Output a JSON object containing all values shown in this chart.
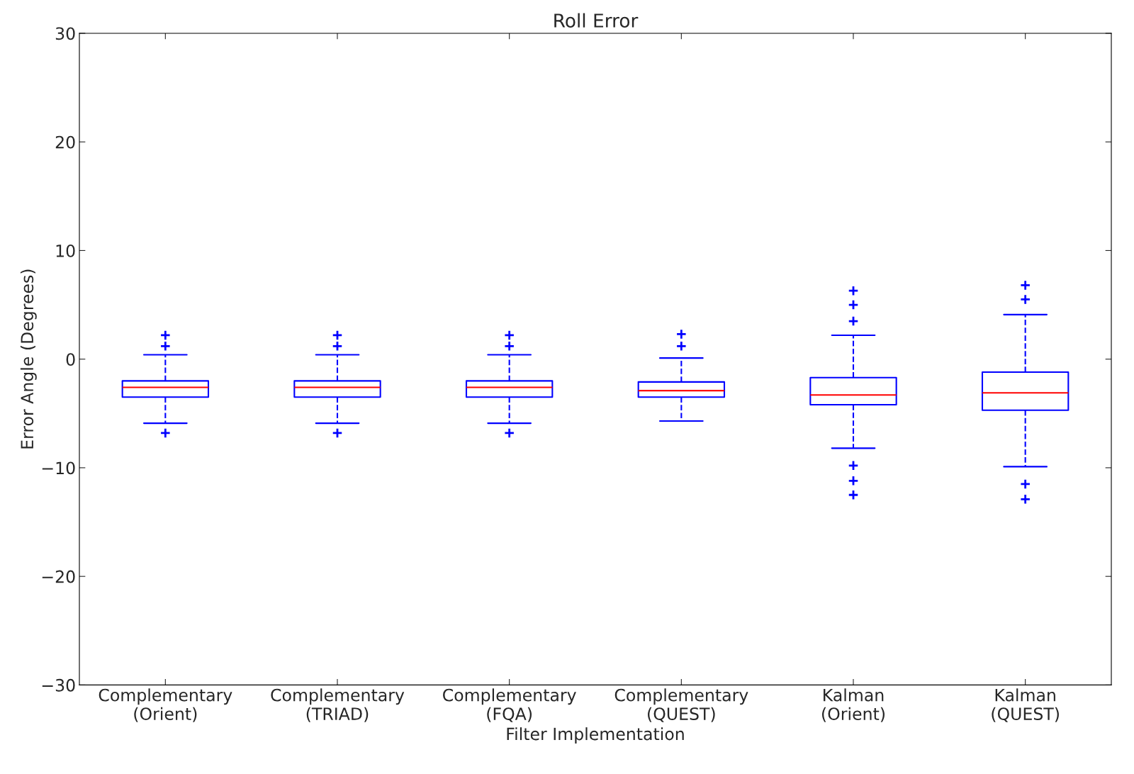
{
  "chart_data": {
    "type": "box",
    "title": "Roll Error",
    "xlabel": "Filter Implementation",
    "ylabel": "Error Angle (Degrees)",
    "categories": [
      "Complementary\n(Orient)",
      "Complementary\n(TRIAD)",
      "Complementary\n(FQA)",
      "Complementary\n(QUEST)",
      "Kalman\n(Orient)",
      "Kalman\n(QUEST)"
    ],
    "ylim": [
      -30,
      30
    ],
    "yticks": [
      -30,
      -20,
      -10,
      0,
      10,
      20,
      30
    ],
    "grid": false,
    "marker": "cross",
    "boxes": [
      {
        "low": -5.9,
        "q1": -3.5,
        "median": -2.6,
        "q3": -2.0,
        "high": 0.4,
        "outliers": [
          1.2,
          2.2,
          -6.8
        ]
      },
      {
        "low": -5.9,
        "q1": -3.5,
        "median": -2.6,
        "q3": -2.0,
        "high": 0.4,
        "outliers": [
          1.2,
          2.2,
          -6.8
        ]
      },
      {
        "low": -5.9,
        "q1": -3.5,
        "median": -2.6,
        "q3": -2.0,
        "high": 0.4,
        "outliers": [
          1.2,
          2.2,
          -6.8
        ]
      },
      {
        "low": -5.7,
        "q1": -3.5,
        "median": -2.9,
        "q3": -2.1,
        "high": 0.1,
        "outliers": [
          1.2,
          2.3
        ]
      },
      {
        "low": -8.2,
        "q1": -4.2,
        "median": -3.3,
        "q3": -1.7,
        "high": 2.2,
        "outliers": [
          3.5,
          5.0,
          6.3,
          -9.8,
          -11.2,
          -12.5
        ]
      },
      {
        "low": -9.9,
        "q1": -4.7,
        "median": -3.1,
        "q3": -1.2,
        "high": 4.1,
        "outliers": [
          5.5,
          6.8,
          -11.5,
          -12.9
        ]
      }
    ]
  }
}
